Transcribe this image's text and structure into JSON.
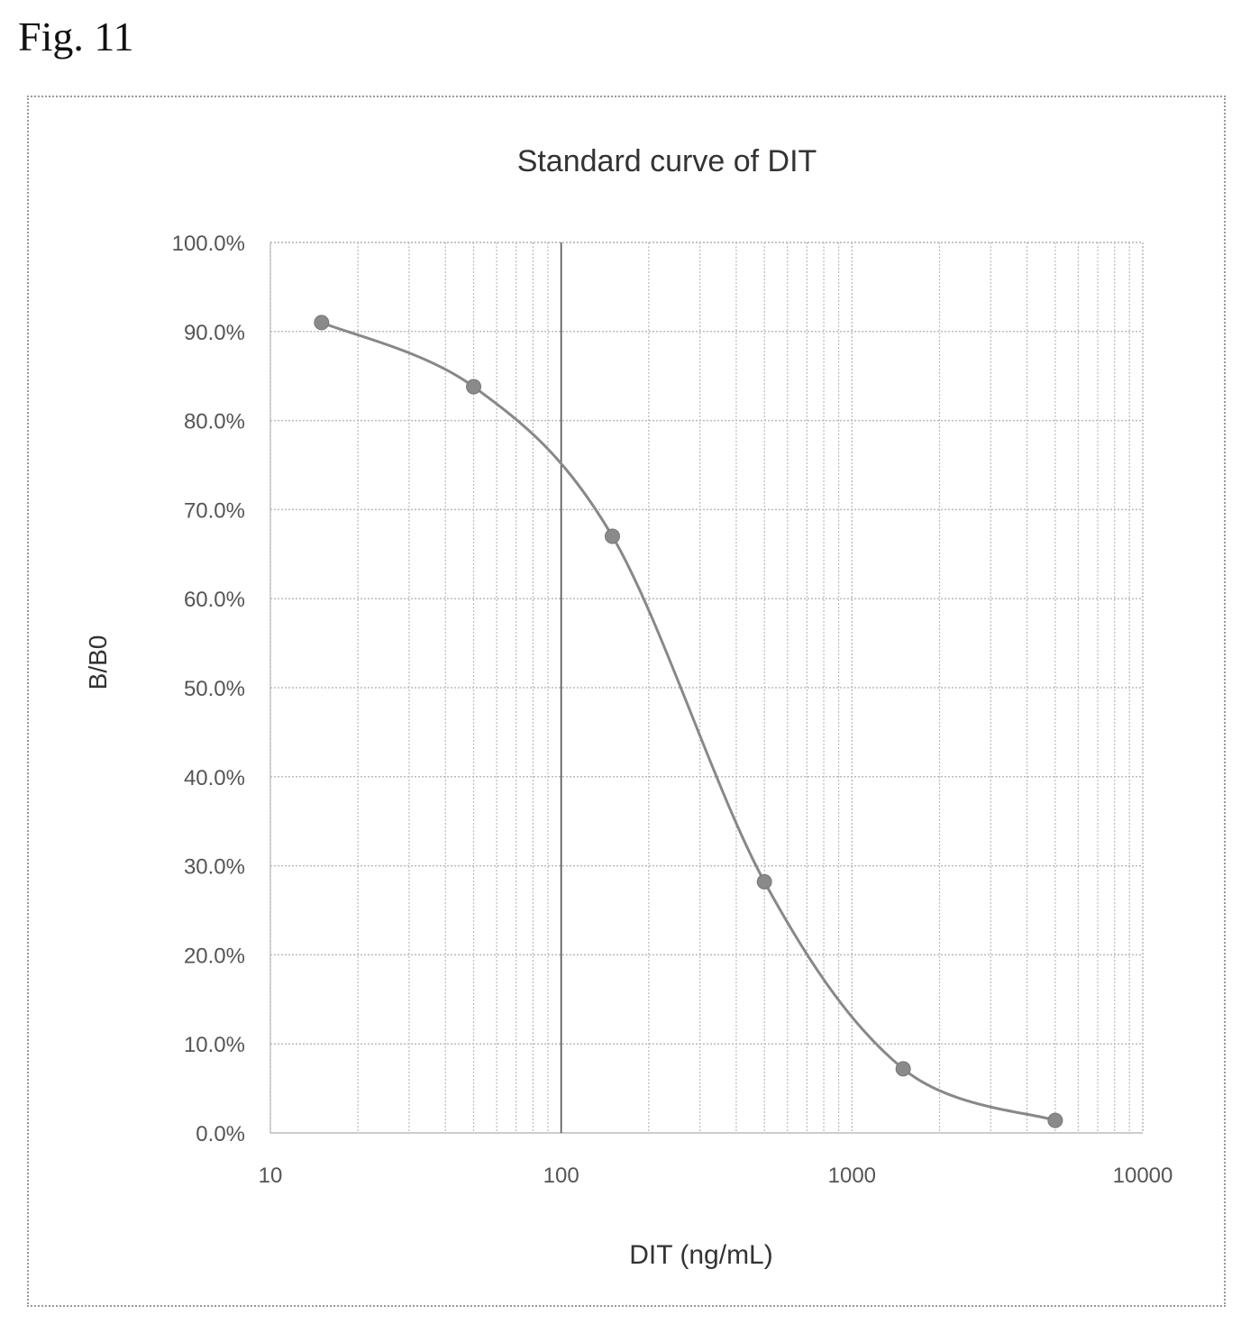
{
  "figure_label": "Fig. 11",
  "chart_data": {
    "type": "line",
    "title": "Standard curve of DIT",
    "xlabel": "DIT (ng/mL)",
    "ylabel": "B/B0",
    "xscale": "log",
    "xlim": [
      10,
      10000
    ],
    "ylim": [
      0,
      100
    ],
    "x_ticks": [
      "10",
      "100",
      "1000",
      "10000"
    ],
    "y_ticks": [
      "0.0%",
      "10.0%",
      "20.0%",
      "30.0%",
      "40.0%",
      "50.0%",
      "60.0%",
      "70.0%",
      "80.0%",
      "90.0%",
      "100.0%"
    ],
    "grid": true,
    "series": [
      {
        "name": "DIT",
        "x": [
          15,
          50,
          150,
          500,
          1500,
          5000
        ],
        "y": [
          91.0,
          83.8,
          67.0,
          28.2,
          7.2,
          1.4
        ]
      }
    ],
    "colors": {
      "line": "#888888",
      "marker": "#8a8a8a",
      "grid": "#bbbbbb",
      "text": "#333333"
    }
  }
}
